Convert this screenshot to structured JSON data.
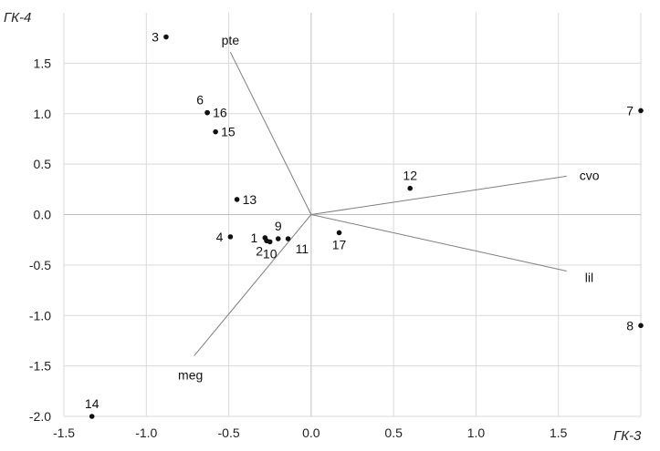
{
  "chart_data": {
    "type": "scatter",
    "title": "",
    "xlabel": "ГК-3",
    "ylabel": "ГК-4",
    "xlim": [
      -1.5,
      2.0
    ],
    "ylim": [
      -2.0,
      2.0
    ],
    "xticks": [
      -1.5,
      -1.0,
      -0.5,
      0.0,
      0.5,
      1.0,
      1.5
    ],
    "yticks": [
      -2.0,
      -1.5,
      -1.0,
      -0.5,
      0.0,
      0.5,
      1.0,
      1.5
    ],
    "xtick_labels": [
      "-1.5",
      "-1.0",
      "-0.5",
      "0.0",
      "0.5",
      "1.0",
      "1.5"
    ],
    "ytick_labels": [
      "-2.0",
      "-1.5",
      "-1.0",
      "-0.5",
      "0.0",
      "0.5",
      "1.0",
      "1.5"
    ],
    "grid": true,
    "points": [
      {
        "label": "1",
        "x": -0.28,
        "y": -0.23,
        "label_side": "left"
      },
      {
        "label": "2",
        "x": -0.27,
        "y": -0.26,
        "label_side": "below-left"
      },
      {
        "label": "3",
        "x": -0.88,
        "y": 1.76,
        "label_side": "left"
      },
      {
        "label": "4",
        "x": -0.49,
        "y": -0.22,
        "label_side": "left"
      },
      {
        "label": "6",
        "x": -0.63,
        "y": 1.01,
        "label_side": "above-left"
      },
      {
        "label": "7",
        "x": 2.0,
        "y": 1.03,
        "label_side": "left"
      },
      {
        "label": "8",
        "x": 2.0,
        "y": -1.1,
        "label_side": "left"
      },
      {
        "label": "9",
        "x": -0.2,
        "y": -0.24,
        "label_side": "above"
      },
      {
        "label": "10",
        "x": -0.25,
        "y": -0.27,
        "label_side": "below"
      },
      {
        "label": "11",
        "x": -0.14,
        "y": -0.24,
        "label_side": "below-right"
      },
      {
        "label": "12",
        "x": 0.6,
        "y": 0.26,
        "label_side": "above"
      },
      {
        "label": "13",
        "x": -0.45,
        "y": 0.15,
        "label_side": "right"
      },
      {
        "label": "14",
        "x": -1.33,
        "y": -2.0,
        "label_side": "above"
      },
      {
        "label": "15",
        "x": -0.58,
        "y": 0.82,
        "label_side": "right"
      },
      {
        "label": "16",
        "x": -0.63,
        "y": 1.01,
        "label_side": "right"
      },
      {
        "label": "17",
        "x": 0.17,
        "y": -0.18,
        "label_side": "below"
      }
    ],
    "vectors": [
      {
        "name": "pte",
        "x": -0.49,
        "y": 1.61
      },
      {
        "name": "cvo",
        "x": 1.55,
        "y": 0.38
      },
      {
        "name": "lil",
        "x": 1.55,
        "y": -0.56
      },
      {
        "name": "meg",
        "x": -0.71,
        "y": -1.4
      }
    ]
  }
}
